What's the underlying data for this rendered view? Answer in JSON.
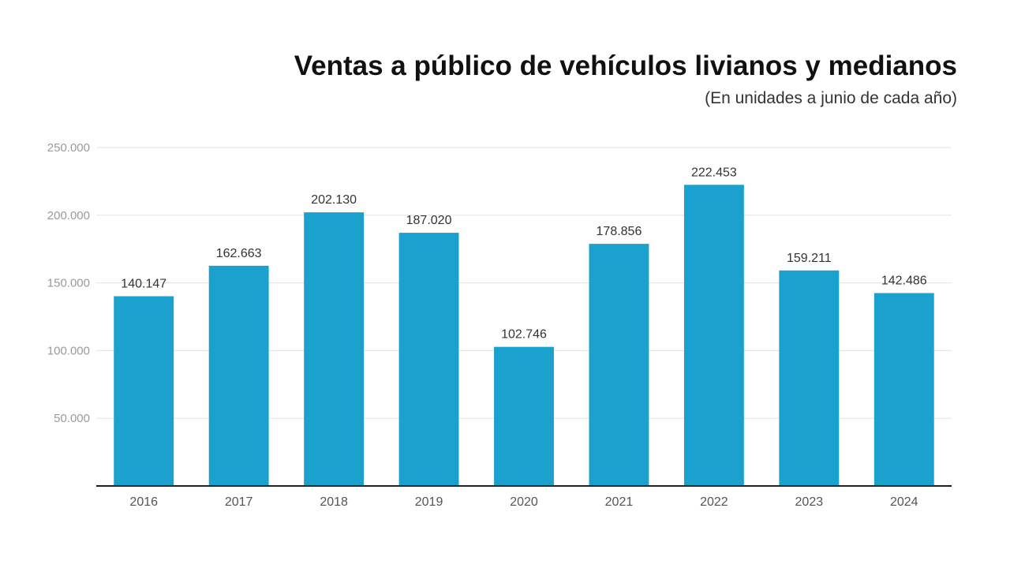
{
  "chart_data": {
    "type": "bar",
    "title": "Ventas a público de vehículos livianos y medianos",
    "subtitle": "(En unidades a junio de cada año)",
    "categories": [
      "2016",
      "2017",
      "2018",
      "2019",
      "2020",
      "2021",
      "2022",
      "2023",
      "2024"
    ],
    "values": [
      140147,
      162663,
      202130,
      187020,
      102746,
      178856,
      222453,
      159211,
      142486
    ],
    "value_labels": [
      "140.147",
      "162.663",
      "202.130",
      "187.020",
      "102.746",
      "178.856",
      "222.453",
      "159.211",
      "142.486"
    ],
    "ylim": [
      0,
      250000
    ],
    "yticks": [
      50000,
      100000,
      150000,
      200000,
      250000
    ],
    "ytick_labels": [
      "50.000",
      "100.000",
      "150.000",
      "200.000",
      "250.000"
    ],
    "grid": true,
    "legend": "none",
    "bar_color": "#1aa1ce",
    "axis_color": "#222222",
    "grid_color": "#e3e3e3"
  }
}
